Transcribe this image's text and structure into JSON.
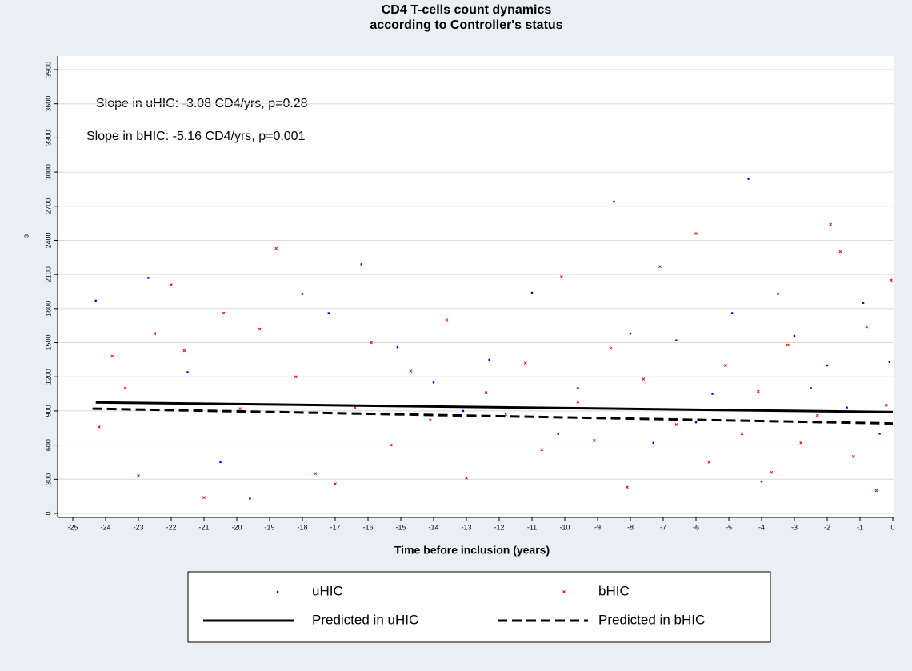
{
  "chart_data": {
    "type": "scatter",
    "title": [
      "CD4 T-cells count dynamics",
      "according to Controller's status"
    ],
    "xlabel": "Time before inclusion (years)",
    "ylabel": "з",
    "annotations": [
      "Slope in uHIC: -3.08 CD4/yrs, p=0.28",
      "Slope in bHIC: -5.16 CD4/yrs, p=0.001"
    ],
    "xlim": [
      -25,
      0
    ],
    "xticks": [
      -25,
      -24,
      -23,
      -22,
      -21,
      -20,
      -19,
      -18,
      -17,
      -16,
      -15,
      -14,
      -13,
      -12,
      -11,
      -10,
      -9,
      -8,
      -7,
      -6,
      -5,
      -4,
      -3,
      -2,
      -1,
      0
    ],
    "ylim": [
      0,
      3900
    ],
    "yticks": [
      0,
      300,
      600,
      900,
      1200,
      1500,
      1800,
      2100,
      2400,
      2700,
      3000,
      3300,
      3600,
      3900
    ],
    "grid": true,
    "series": [
      {
        "name": "uHIC",
        "color": "#0000ff",
        "mark": "dot",
        "x": [
          -24.3,
          -22.7,
          -21.5,
          -20.5,
          -19.6,
          -18,
          -17.2,
          -16.2,
          -15.1,
          -14,
          -13.1,
          -12.3,
          -11,
          -10.2,
          -9.6,
          -8.5,
          -8,
          -7.3,
          -6.6,
          -6,
          -5.5,
          -4.9,
          -4.4,
          -4,
          -3.5,
          -3,
          -2.5,
          -2,
          -1.4,
          -0.9,
          -0.4,
          -0.1
        ],
        "values": [
          1870,
          2070,
          1240,
          450,
          130,
          1930,
          1760,
          2190,
          1460,
          1150,
          900,
          1350,
          1940,
          700,
          1100,
          2740,
          1580,
          620,
          1520,
          800,
          1050,
          1760,
          2940,
          280,
          1930,
          1560,
          1100,
          1300,
          930,
          1850,
          700,
          1330
        ]
      },
      {
        "name": "bHIC",
        "color": "#ff0000",
        "mark": "cross",
        "x": [
          -24.2,
          -23.8,
          -23.4,
          -23,
          -22.5,
          -22,
          -21.6,
          -21,
          -20.4,
          -19.9,
          -19.3,
          -18.8,
          -18.2,
          -17.6,
          -17,
          -16.4,
          -15.9,
          -15.3,
          -14.7,
          -14.1,
          -13.6,
          -13,
          -12.4,
          -11.8,
          -11.2,
          -10.7,
          -10.1,
          -9.6,
          -9.1,
          -8.6,
          -8.1,
          -7.6,
          -7.1,
          -6.6,
          -6,
          -5.6,
          -5.1,
          -4.6,
          -4.1,
          -3.7,
          -3.2,
          -2.8,
          -2.3,
          -1.9,
          -1.6,
          -1.2,
          -0.8,
          -0.5,
          -0.2,
          -0.05
        ],
        "values": [
          760,
          1380,
          1100,
          330,
          1580,
          2010,
          1430,
          140,
          1760,
          920,
          1620,
          2330,
          1200,
          350,
          260,
          930,
          1500,
          600,
          1250,
          820,
          1700,
          310,
          1060,
          870,
          1320,
          560,
          2080,
          980,
          640,
          1450,
          230,
          1180,
          2170,
          780,
          2460,
          450,
          1300,
          700,
          1070,
          360,
          1480,
          620,
          860,
          2540,
          2300,
          500,
          1640,
          200,
          950,
          2050
        ]
      },
      {
        "name": "Predicted in uHIC",
        "color": "#000000",
        "mark": "line",
        "dash": "solid",
        "x": [
          -24.3,
          0
        ],
        "values": [
          975,
          890
        ]
      },
      {
        "name": "Predicted in bHIC",
        "color": "#000000",
        "mark": "line",
        "dash": "dashed",
        "x": [
          -24.4,
          0
        ],
        "values": [
          920,
          790
        ]
      }
    ]
  }
}
